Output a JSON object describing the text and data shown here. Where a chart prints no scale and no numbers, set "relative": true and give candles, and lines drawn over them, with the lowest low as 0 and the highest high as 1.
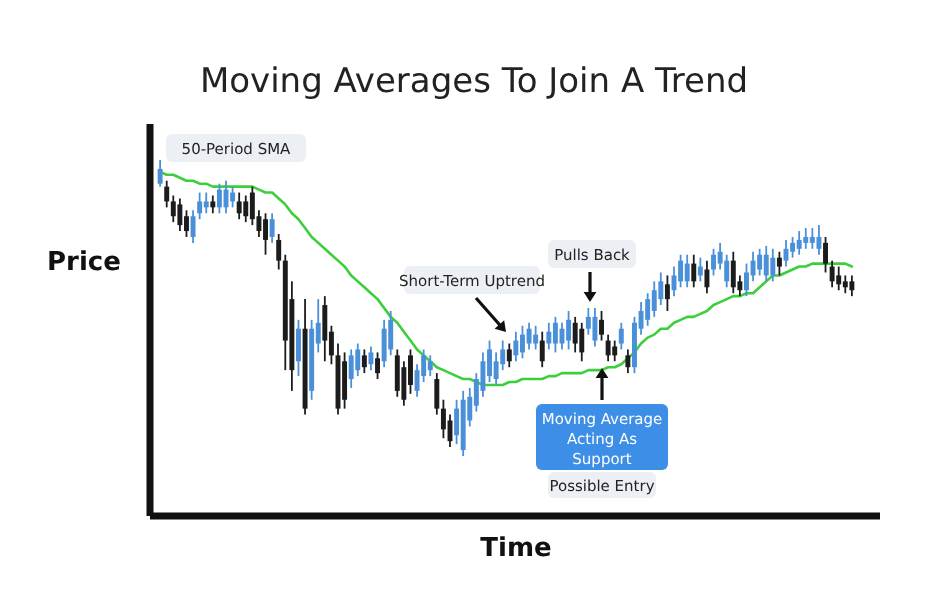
{
  "chart_data": {
    "type": "candlestick",
    "title": "Moving Averages To Join A Trend",
    "xlabel": "Time",
    "ylabel": "Price",
    "relative": true,
    "categories": [
      null,
      null,
      null,
      null,
      null,
      null,
      null,
      null,
      null,
      null,
      null,
      null,
      null,
      null,
      null,
      null,
      null,
      null,
      null,
      null,
      null,
      null,
      null,
      null,
      null,
      null,
      null,
      null,
      null,
      null,
      null,
      null,
      null,
      null,
      null,
      null,
      null,
      null,
      null,
      null,
      null,
      null,
      null,
      null,
      null,
      null,
      null,
      null,
      null,
      null,
      null,
      null,
      null,
      null,
      null,
      null,
      null,
      null,
      null,
      null,
      null,
      null,
      null,
      null,
      null,
      null,
      null,
      null,
      null,
      null,
      null,
      null,
      null,
      null,
      null,
      null,
      null,
      null,
      null,
      null,
      null,
      null,
      null,
      null,
      null,
      null,
      null,
      null,
      null,
      null,
      null,
      null,
      null,
      null,
      null,
      null,
      null,
      null,
      null,
      null,
      null,
      null,
      null,
      null,
      null,
      null
    ],
    "ohlc": [
      [
        0.92,
        1.0,
        0.91,
        0.97
      ],
      [
        0.91,
        0.93,
        0.84,
        0.86
      ],
      [
        0.86,
        0.88,
        0.79,
        0.81
      ],
      [
        0.85,
        0.87,
        0.76,
        0.78
      ],
      [
        0.81,
        0.83,
        0.74,
        0.76
      ],
      [
        0.74,
        0.83,
        0.72,
        0.81
      ],
      [
        0.82,
        0.89,
        0.8,
        0.86
      ],
      [
        0.84,
        0.89,
        0.82,
        0.86
      ],
      [
        0.86,
        0.88,
        0.82,
        0.84
      ],
      [
        0.84,
        0.92,
        0.82,
        0.9
      ],
      [
        0.84,
        0.93,
        0.82,
        0.9
      ],
      [
        0.86,
        0.91,
        0.84,
        0.89
      ],
      [
        0.86,
        0.89,
        0.8,
        0.82
      ],
      [
        0.86,
        0.88,
        0.79,
        0.81
      ],
      [
        0.89,
        0.91,
        0.78,
        0.8
      ],
      [
        0.81,
        0.83,
        0.74,
        0.76
      ],
      [
        0.8,
        0.82,
        0.68,
        0.73
      ],
      [
        0.74,
        0.82,
        0.72,
        0.8
      ],
      [
        0.73,
        0.75,
        0.63,
        0.66
      ],
      [
        0.66,
        0.68,
        0.29,
        0.39
      ],
      [
        0.53,
        0.59,
        0.22,
        0.29
      ],
      [
        0.32,
        0.46,
        0.27,
        0.43
      ],
      [
        0.43,
        0.53,
        0.14,
        0.16
      ],
      [
        0.22,
        0.46,
        0.19,
        0.43
      ],
      [
        0.38,
        0.53,
        0.35,
        0.45
      ],
      [
        0.51,
        0.54,
        0.32,
        0.39
      ],
      [
        0.42,
        0.44,
        0.31,
        0.34
      ],
      [
        0.34,
        0.38,
        0.14,
        0.16
      ],
      [
        0.32,
        0.35,
        0.16,
        0.19
      ],
      [
        0.26,
        0.36,
        0.23,
        0.34
      ],
      [
        0.29,
        0.38,
        0.27,
        0.36
      ],
      [
        0.34,
        0.36,
        0.28,
        0.3
      ],
      [
        0.31,
        0.37,
        0.29,
        0.35
      ],
      [
        0.33,
        0.35,
        0.26,
        0.28
      ],
      [
        0.32,
        0.46,
        0.3,
        0.43
      ],
      [
        0.36,
        0.49,
        0.34,
        0.46
      ],
      [
        0.34,
        0.36,
        0.2,
        0.22
      ],
      [
        0.3,
        0.32,
        0.17,
        0.19
      ],
      [
        0.34,
        0.36,
        0.21,
        0.24
      ],
      [
        0.22,
        0.31,
        0.2,
        0.29
      ],
      [
        0.27,
        0.36,
        0.25,
        0.34
      ],
      [
        0.29,
        0.34,
        0.27,
        0.32
      ],
      [
        0.26,
        0.28,
        0.14,
        0.16
      ],
      [
        0.16,
        0.19,
        0.06,
        0.09
      ],
      [
        0.12,
        0.14,
        0.03,
        0.05
      ],
      [
        0.07,
        0.19,
        0.04,
        0.16
      ],
      [
        0.02,
        0.22,
        0.0,
        0.19
      ],
      [
        0.12,
        0.23,
        0.1,
        0.2
      ],
      [
        0.17,
        0.28,
        0.15,
        0.26
      ],
      [
        0.22,
        0.35,
        0.2,
        0.32
      ],
      [
        0.27,
        0.39,
        0.25,
        0.36
      ],
      [
        0.26,
        0.35,
        0.24,
        0.32
      ],
      [
        0.31,
        0.39,
        0.29,
        0.36
      ],
      [
        0.36,
        0.38,
        0.3,
        0.32
      ],
      [
        0.34,
        0.42,
        0.32,
        0.39
      ],
      [
        0.35,
        0.44,
        0.33,
        0.41
      ],
      [
        0.38,
        0.45,
        0.36,
        0.43
      ],
      [
        0.38,
        0.44,
        0.36,
        0.41
      ],
      [
        0.39,
        0.42,
        0.3,
        0.32
      ],
      [
        0.38,
        0.45,
        0.36,
        0.42
      ],
      [
        0.38,
        0.47,
        0.35,
        0.45
      ],
      [
        0.38,
        0.45,
        0.36,
        0.43
      ],
      [
        0.39,
        0.49,
        0.36,
        0.46
      ],
      [
        0.45,
        0.47,
        0.35,
        0.38
      ],
      [
        0.43,
        0.45,
        0.32,
        0.35
      ],
      [
        0.43,
        0.5,
        0.41,
        0.47
      ],
      [
        0.39,
        0.5,
        0.37,
        0.47
      ],
      [
        0.46,
        0.49,
        0.39,
        0.41
      ],
      [
        0.39,
        0.41,
        0.32,
        0.34
      ],
      [
        0.37,
        0.39,
        0.32,
        0.34
      ],
      [
        0.38,
        0.45,
        0.36,
        0.43
      ],
      [
        0.34,
        0.36,
        0.28,
        0.3
      ],
      [
        0.3,
        0.47,
        0.28,
        0.45
      ],
      [
        0.43,
        0.52,
        0.41,
        0.49
      ],
      [
        0.46,
        0.55,
        0.44,
        0.53
      ],
      [
        0.49,
        0.59,
        0.47,
        0.56
      ],
      [
        0.53,
        0.62,
        0.51,
        0.59
      ],
      [
        0.58,
        0.61,
        0.49,
        0.53
      ],
      [
        0.56,
        0.64,
        0.54,
        0.61
      ],
      [
        0.59,
        0.68,
        0.57,
        0.66
      ],
      [
        0.59,
        0.68,
        0.57,
        0.65
      ],
      [
        0.65,
        0.68,
        0.57,
        0.59
      ],
      [
        0.61,
        0.67,
        0.59,
        0.64
      ],
      [
        0.63,
        0.66,
        0.55,
        0.57
      ],
      [
        0.63,
        0.7,
        0.61,
        0.68
      ],
      [
        0.65,
        0.72,
        0.63,
        0.69
      ],
      [
        0.59,
        0.68,
        0.57,
        0.66
      ],
      [
        0.66,
        0.69,
        0.55,
        0.57
      ],
      [
        0.59,
        0.61,
        0.54,
        0.56
      ],
      [
        0.56,
        0.65,
        0.54,
        0.62
      ],
      [
        0.61,
        0.69,
        0.59,
        0.66
      ],
      [
        0.63,
        0.7,
        0.61,
        0.68
      ],
      [
        0.61,
        0.71,
        0.59,
        0.68
      ],
      [
        0.61,
        0.7,
        0.59,
        0.67
      ],
      [
        0.67,
        0.69,
        0.61,
        0.64
      ],
      [
        0.66,
        0.73,
        0.64,
        0.7
      ],
      [
        0.69,
        0.74,
        0.67,
        0.72
      ],
      [
        0.7,
        0.76,
        0.68,
        0.73
      ],
      [
        0.72,
        0.77,
        0.7,
        0.74
      ],
      [
        0.72,
        0.77,
        0.7,
        0.74
      ],
      [
        0.7,
        0.78,
        0.68,
        0.74
      ],
      [
        0.72,
        0.74,
        0.62,
        0.65
      ],
      [
        0.64,
        0.66,
        0.57,
        0.59
      ],
      [
        0.61,
        0.64,
        0.56,
        0.58
      ],
      [
        0.59,
        0.61,
        0.55,
        0.57
      ],
      [
        0.59,
        0.61,
        0.54,
        0.56
      ]
    ],
    "colors": [
      "#4a90d9",
      "#1c1c1c",
      "#1c1c1c",
      "#1c1c1c",
      "#1c1c1c",
      "#4a90d9",
      "#4a90d9",
      "#4a90d9",
      "#1c1c1c",
      "#4a90d9",
      "#4a90d9",
      "#4a90d9",
      "#1c1c1c",
      "#1c1c1c",
      "#1c1c1c",
      "#1c1c1c",
      "#1c1c1c",
      "#4a90d9",
      "#1c1c1c",
      "#1c1c1c",
      "#1c1c1c",
      "#4a90d9",
      "#1c1c1c",
      "#4a90d9",
      "#4a90d9",
      "#1c1c1c",
      "#1c1c1c",
      "#1c1c1c",
      "#1c1c1c",
      "#4a90d9",
      "#4a90d9",
      "#1c1c1c",
      "#4a90d9",
      "#1c1c1c",
      "#4a90d9",
      "#4a90d9",
      "#1c1c1c",
      "#1c1c1c",
      "#1c1c1c",
      "#4a90d9",
      "#4a90d9",
      "#4a90d9",
      "#1c1c1c",
      "#1c1c1c",
      "#1c1c1c",
      "#4a90d9",
      "#4a90d9",
      "#4a90d9",
      "#4a90d9",
      "#4a90d9",
      "#4a90d9",
      "#4a90d9",
      "#4a90d9",
      "#1c1c1c",
      "#4a90d9",
      "#4a90d9",
      "#4a90d9",
      "#4a90d9",
      "#1c1c1c",
      "#4a90d9",
      "#4a90d9",
      "#4a90d9",
      "#4a90d9",
      "#1c1c1c",
      "#1c1c1c",
      "#4a90d9",
      "#4a90d9",
      "#1c1c1c",
      "#1c1c1c",
      "#1c1c1c",
      "#4a90d9",
      "#1c1c1c",
      "#4a90d9",
      "#4a90d9",
      "#4a90d9",
      "#4a90d9",
      "#4a90d9",
      "#1c1c1c",
      "#4a90d9",
      "#4a90d9",
      "#4a90d9",
      "#1c1c1c",
      "#4a90d9",
      "#1c1c1c",
      "#4a90d9",
      "#4a90d9",
      "#4a90d9",
      "#1c1c1c",
      "#1c1c1c",
      "#4a90d9",
      "#4a90d9",
      "#4a90d9",
      "#4a90d9",
      "#4a90d9",
      "#1c1c1c",
      "#4a90d9",
      "#4a90d9",
      "#4a90d9",
      "#4a90d9",
      "#4a90d9",
      "#4a90d9",
      "#1c1c1c",
      "#1c1c1c",
      "#1c1c1c",
      "#1c1c1c",
      "#1c1c1c"
    ],
    "series": [
      {
        "type": "line",
        "color": "#3ccf3c",
        "values": [
          0.96,
          0.95,
          0.95,
          0.94,
          0.93,
          0.93,
          0.92,
          0.92,
          0.91,
          0.91,
          0.91,
          0.91,
          0.91,
          0.91,
          0.91,
          0.9,
          0.89,
          0.89,
          0.87,
          0.85,
          0.82,
          0.8,
          0.77,
          0.74,
          0.72,
          0.7,
          0.68,
          0.66,
          0.64,
          0.61,
          0.59,
          0.57,
          0.55,
          0.53,
          0.5,
          0.47,
          0.45,
          0.42,
          0.39,
          0.36,
          0.34,
          0.32,
          0.3,
          0.29,
          0.28,
          0.27,
          0.26,
          0.26,
          0.25,
          0.24,
          0.24,
          0.24,
          0.24,
          0.25,
          0.25,
          0.26,
          0.26,
          0.26,
          0.26,
          0.27,
          0.27,
          0.28,
          0.28,
          0.28,
          0.28,
          0.29,
          0.29,
          0.29,
          0.3,
          0.3,
          0.31,
          0.33,
          0.35,
          0.38,
          0.4,
          0.41,
          0.43,
          0.43,
          0.45,
          0.46,
          0.47,
          0.47,
          0.48,
          0.49,
          0.51,
          0.52,
          0.53,
          0.54,
          0.54,
          0.55,
          0.55,
          0.57,
          0.59,
          0.61,
          0.61,
          0.62,
          0.63,
          0.64,
          0.64,
          0.65,
          0.65,
          0.65,
          0.65,
          0.65,
          0.65,
          0.64
        ]
      }
    ],
    "annotations": [
      "50-Period SMA",
      "Short-Term Uptrend",
      "Pulls Back",
      "Moving Average Acting As Support",
      "Possible Entry"
    ]
  }
}
